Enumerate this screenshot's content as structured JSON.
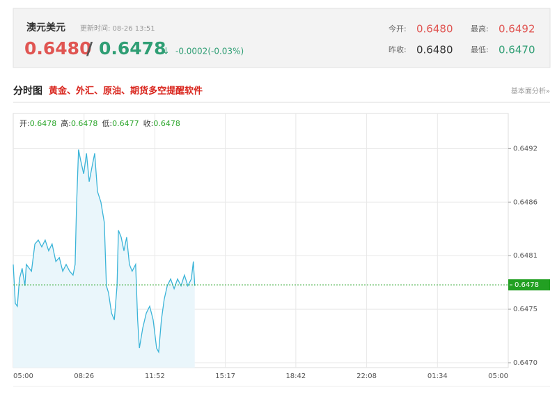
{
  "quote": {
    "name": "澳元美元",
    "update_time": "更新时间: 08-26 13:51",
    "bid": "0.6480",
    "separator": "/",
    "ask": "0.6478",
    "arrow": "↓",
    "change": "-0.0002(-0.03%)",
    "stats": [
      {
        "label": "今开:",
        "value": "0.6480"
      },
      {
        "label": "最高:",
        "value": "0.6492"
      },
      {
        "label": "昨收:",
        "value": "0.6480"
      },
      {
        "label": "最低:",
        "value": "0.6470"
      }
    ]
  },
  "section": {
    "title": "分时图",
    "promo": "黄金、外汇、原油、期货多空提醒软件",
    "link": "基本面分析»"
  },
  "chart_data": {
    "type": "line",
    "color": "#3bb4d8",
    "fill": "#eaf6fb",
    "grid": true,
    "ohlc": [
      {
        "label": "开:",
        "value": "0.6478"
      },
      {
        "label": "高:",
        "value": "0.6478"
      },
      {
        "label": "低:",
        "value": "0.6477"
      },
      {
        "label": "收:",
        "value": "0.6478"
      }
    ],
    "last_price": 0.6478,
    "x": [
      "05:00",
      "05:06",
      "05:12",
      "05:18",
      "05:26",
      "05:34",
      "05:38",
      "05:53",
      "06:03",
      "06:13",
      "06:23",
      "06:33",
      "06:43",
      "06:53",
      "07:04",
      "07:14",
      "07:24",
      "07:34",
      "07:44",
      "07:54",
      "08:00",
      "08:04",
      "08:10",
      "08:16",
      "08:25",
      "08:33",
      "08:41",
      "08:49",
      "08:57",
      "09:05",
      "09:15",
      "09:25",
      "09:31",
      "09:37",
      "09:46",
      "09:54",
      "10:02",
      "10:06",
      "10:14",
      "10:22",
      "10:30",
      "10:38",
      "10:46",
      "10:56",
      "11:02",
      "11:07",
      "11:17",
      "11:27",
      "11:37",
      "11:47",
      "11:57",
      "12:03",
      "12:11",
      "12:19",
      "12:28",
      "12:38",
      "12:48",
      "12:58",
      "13:08",
      "13:18",
      "13:28",
      "13:38",
      "13:44",
      "13:48"
    ],
    "values": [
      0.64801,
      0.64761,
      0.64758,
      0.64786,
      0.64797,
      0.64779,
      0.64801,
      0.64794,
      0.64822,
      0.64826,
      0.64819,
      0.64826,
      0.64815,
      0.64822,
      0.64804,
      0.64808,
      0.64794,
      0.64801,
      0.64794,
      0.6479,
      0.64801,
      0.64858,
      0.64919,
      0.64908,
      0.64894,
      0.64915,
      0.64886,
      0.64901,
      0.64915,
      0.64876,
      0.64865,
      0.64844,
      0.64779,
      0.64772,
      0.64751,
      0.64744,
      0.64779,
      0.64836,
      0.64829,
      0.64815,
      0.64829,
      0.64801,
      0.64794,
      0.64801,
      0.64744,
      0.64715,
      0.64736,
      0.64751,
      0.64758,
      0.64744,
      0.64715,
      0.64711,
      0.64744,
      0.64765,
      0.64779,
      0.64786,
      0.64776,
      0.64786,
      0.64779,
      0.6479,
      0.64779,
      0.64786,
      0.64804,
      0.64779
    ],
    "xticks": [
      "05:00",
      "08:26",
      "11:52",
      "15:17",
      "18:42",
      "22:08",
      "01:34",
      "05:00"
    ],
    "ylim": [
      0.64695,
      0.64956
    ],
    "yticks": [
      {
        "value": 0.647,
        "label": "0.6470"
      },
      {
        "value": 0.64755,
        "label": "0.6475"
      },
      0.6481,
      {
        "value": 0.64865,
        "label": "0.6486"
      },
      0.6492
    ]
  }
}
